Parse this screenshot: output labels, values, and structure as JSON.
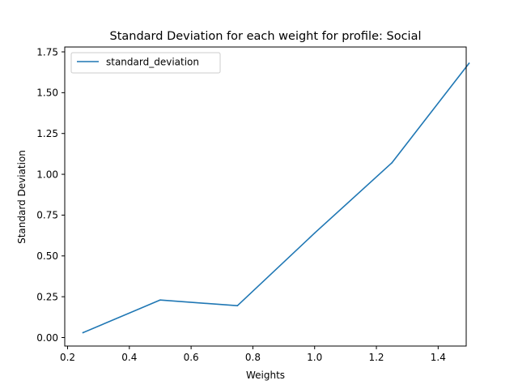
{
  "chart_data": {
    "type": "line",
    "title": "Standard Deviation for each weight for profile: Social",
    "xlabel": "Weights",
    "ylabel": "Standard Deviation",
    "xlim": [
      0.2,
      1.5
    ],
    "ylim": [
      0.0,
      1.75
    ],
    "xticks": [
      "0.2",
      "0.4",
      "0.6",
      "0.8",
      "1.0",
      "1.2",
      "1.4"
    ],
    "yticks": [
      "0.00",
      "0.25",
      "0.50",
      "0.75",
      "1.00",
      "1.25",
      "1.50",
      "1.75"
    ],
    "grid": false,
    "legend_position": "upper-left",
    "series": [
      {
        "name": "standard_deviation",
        "color": "#1f77b4",
        "x": [
          0.25,
          0.5,
          0.75,
          1.0,
          1.25,
          1.5
        ],
        "y": [
          0.03,
          0.23,
          0.195,
          0.64,
          1.07,
          1.68
        ]
      }
    ]
  }
}
